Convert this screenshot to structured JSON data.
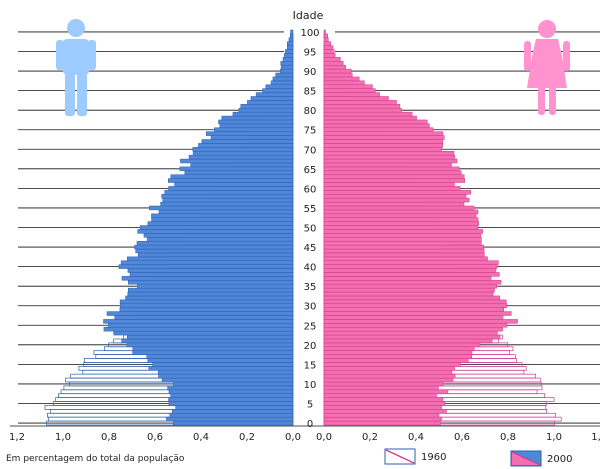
{
  "chart_data": {
    "type": "bar",
    "subtype": "population-pyramid",
    "title": "",
    "center_axis_label": "Idade",
    "age_ticks": [
      0,
      5,
      10,
      15,
      20,
      25,
      30,
      35,
      40,
      45,
      50,
      55,
      60,
      65,
      70,
      75,
      80,
      85,
      90,
      95,
      100
    ],
    "x_tick_labels_left": [
      "1,2",
      "1,0",
      "0,8",
      "0,6",
      "0,4",
      "0,2",
      "0,0"
    ],
    "x_tick_labels_right": [
      "0,0",
      "0,2",
      "0,4",
      "0,6",
      "0,8",
      "1,0",
      "1,"
    ],
    "xlabel": "Em percentagem do total da população",
    "xlim": [
      0,
      1.2
    ],
    "ylim": [
      0,
      100
    ],
    "legend": [
      {
        "label": "1960",
        "style": "outline"
      },
      {
        "label": "2000",
        "style": "filled"
      }
    ],
    "series": [
      {
        "side": "male",
        "legend": "2000",
        "ages": [
          0,
          5,
          10,
          15,
          20,
          25,
          30,
          35,
          40,
          45,
          50,
          55,
          60,
          65,
          70,
          75,
          80,
          85,
          90,
          95,
          100
        ],
        "values": [
          0.54,
          0.52,
          0.55,
          0.62,
          0.7,
          0.82,
          0.76,
          0.7,
          0.74,
          0.67,
          0.64,
          0.6,
          0.54,
          0.48,
          0.43,
          0.35,
          0.25,
          0.13,
          0.06,
          0.03,
          0.01
        ]
      },
      {
        "side": "male",
        "legend": "1960",
        "ages": [
          0,
          5,
          10,
          15,
          20,
          25,
          30,
          35,
          40,
          45,
          50,
          55,
          60,
          65,
          70,
          75,
          80,
          85,
          90,
          95,
          100
        ],
        "values": [
          1.1,
          1.04,
          0.98,
          0.9,
          0.8,
          0.7,
          0.66,
          0.62,
          0.56,
          0.5,
          0.45,
          0.39,
          0.33,
          0.27,
          0.21,
          0.15,
          0.09,
          0.05,
          0.02,
          0.01,
          0.0
        ]
      },
      {
        "side": "female",
        "legend": "2000",
        "ages": [
          0,
          5,
          10,
          15,
          20,
          25,
          30,
          35,
          40,
          45,
          50,
          55,
          60,
          65,
          70,
          75,
          80,
          85,
          90,
          95,
          100
        ],
        "values": [
          0.52,
          0.5,
          0.53,
          0.61,
          0.7,
          0.82,
          0.78,
          0.74,
          0.76,
          0.7,
          0.68,
          0.64,
          0.6,
          0.57,
          0.54,
          0.48,
          0.36,
          0.22,
          0.11,
          0.04,
          0.01
        ]
      },
      {
        "side": "female",
        "legend": "1960",
        "ages": [
          0,
          5,
          10,
          15,
          20,
          25,
          30,
          35,
          40,
          45,
          50,
          55,
          60,
          65,
          70,
          75,
          80,
          85,
          90,
          95,
          100
        ],
        "values": [
          1.02,
          0.98,
          0.94,
          0.87,
          0.78,
          0.7,
          0.67,
          0.64,
          0.58,
          0.53,
          0.49,
          0.44,
          0.4,
          0.35,
          0.29,
          0.22,
          0.15,
          0.08,
          0.04,
          0.01,
          0.0
        ]
      }
    ],
    "grid": true,
    "colors": {
      "male_fill": "#4f87d9",
      "male_stroke": "#2d5eb3",
      "female_fill": "#f36fb0",
      "female_stroke": "#d0388c",
      "outline_male": "#2d5eb3",
      "outline_female": "#d0388c",
      "male_icon": "#9ecbff",
      "female_icon": "#ff92cf"
    }
  }
}
